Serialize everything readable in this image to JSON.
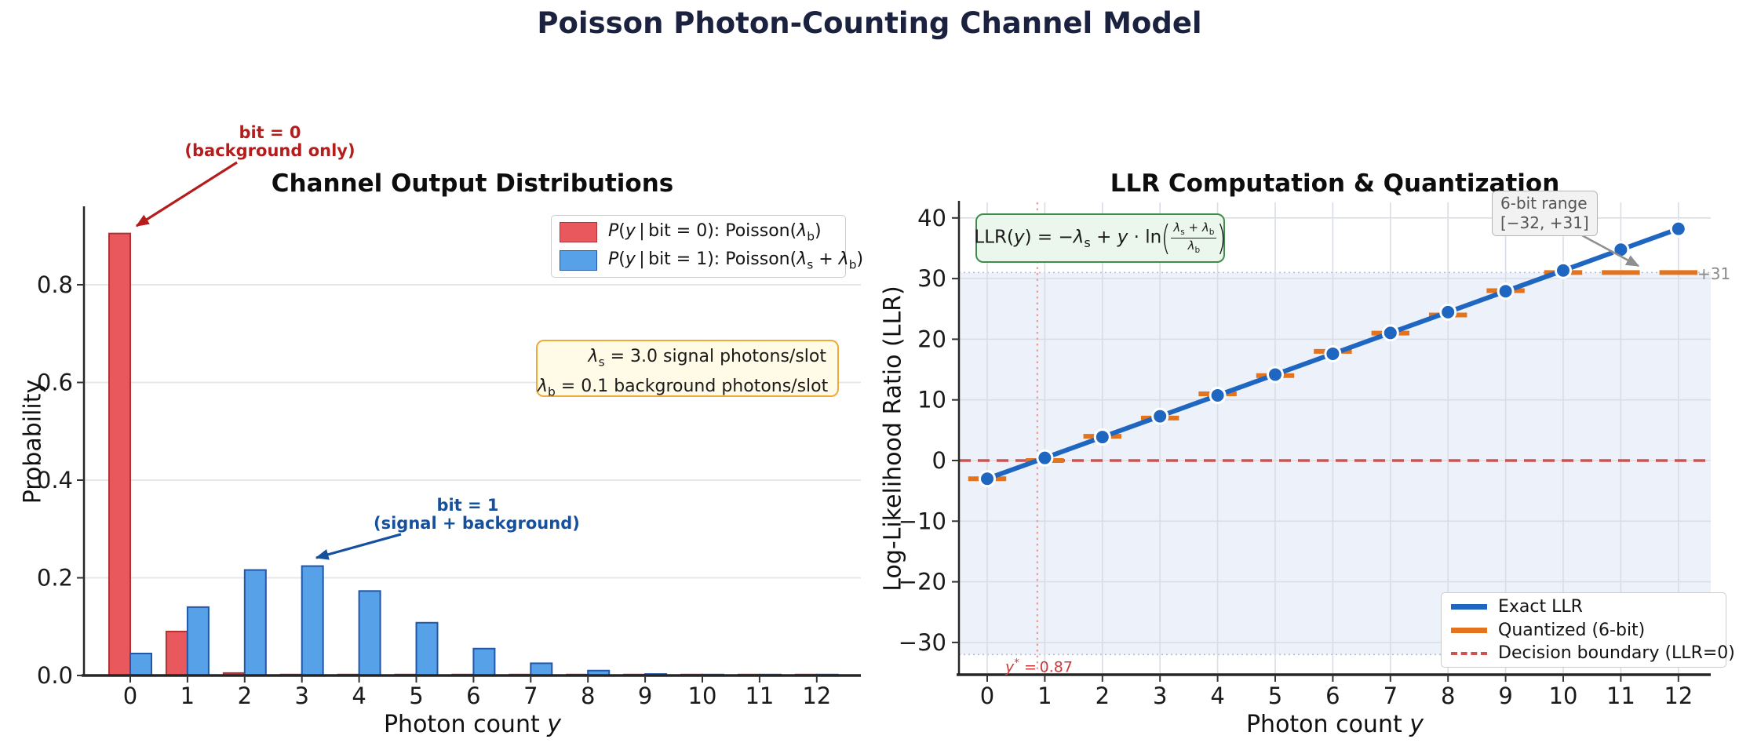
{
  "figure_title": "Poisson Photon-Counting Channel Model",
  "colors": {
    "title": "#1b2240",
    "bit0_fill": "#e8585c",
    "bit0_edge": "#ad3336",
    "bit1_fill": "#57a1e9",
    "bit1_edge": "#2257a8",
    "exact_llr": "#1f66c1",
    "quantized": "#e4731d",
    "decision": "#cd5250",
    "annotation_bit0": "#b51c1c",
    "annotation_bit1": "#15509e",
    "param_box_border": "#f2a93b",
    "param_box_bg": "#fffbe7",
    "formula_border": "#3e8e49",
    "formula_bg": "#ebf6ec",
    "range_box_bg": "#f2f2f2",
    "range_box_border": "#b5b5b5",
    "range_box_text": "#555555",
    "shade": "#edf1f9",
    "shade_edge_dotted": "#b4bccd",
    "threshold": "#cc3a3a",
    "threshold_line": "#ec9b9b",
    "grid_left": "#e7e7e7",
    "grid_right": "#d9dde6",
    "clip_label": "#8a8a8a",
    "spine": "#262626",
    "tick_text": "#1a1a1a",
    "arrow_gray": "#8f8f8f"
  },
  "left_chart": {
    "title": "Channel Output Distributions",
    "ylabel": "Probability",
    "xlabel_html": "Photon count <i>y</i>",
    "legend": [
      {
        "label_html": "<i>P</i>(<i>y</i> | bit = 0): Poisson(<i>λ</i><sub>b</sub>)"
      },
      {
        "label_html": "<i>P</i>(<i>y</i> | bit = 1): Poisson(<i>λ</i><sub>s</sub> + <i>λ</i><sub>b</sub>)"
      }
    ],
    "param_lines_html": [
      "<i>λ</i><sub>s</sub> = 3.0 signal photons/slot",
      "<i>λ</i><sub>b</sub> = 0.1 background photons/slot"
    ],
    "ann_bit0": {
      "line1": "bit = 0",
      "line2": "(background only)"
    },
    "ann_bit1": {
      "line1": "bit = 1",
      "line2": "(signal + background)"
    }
  },
  "right_chart": {
    "title": "LLR Computation & Quantization",
    "ylabel": "Log-Likelihood Ratio (LLR)",
    "xlabel_html": "Photon count <i>y</i>",
    "formula_html": "LLR(<i>y</i>) = −<i>λ</i><sub>s</sub> + <i>y</i> · ln<span class='bigp'>(</span><span class='frac'><span class='fnum'><i>λ</i><sub>s</sub> + <i>λ</i><sub>b</sub></span><span class='fden'><i>λ</i><sub>b</sub></span></span><span class='bigp'>)</span>",
    "range_box": {
      "line1": "6-bit range",
      "line2": "[−32, +31]"
    },
    "clip_label": "+31",
    "threshold_html": "<i>y</i><sup>*</sup> = 0.87",
    "legend": [
      "Exact LLR",
      "Quantized (6-bit)",
      "Decision boundary (LLR=0)"
    ]
  },
  "chart_data": [
    {
      "type": "bar",
      "title": "Channel Output Distributions",
      "xlabel": "Photon count y",
      "ylabel": "Probability",
      "categories": [
        0,
        1,
        2,
        3,
        4,
        5,
        6,
        7,
        8,
        9,
        10,
        11,
        12
      ],
      "series": [
        {
          "name": "P(y|bit=0): Poisson(lambda_b=0.1)",
          "values": [
            0.905,
            0.09,
            0.005,
            0.0002,
            0,
            0,
            0,
            0,
            0,
            0,
            0,
            0,
            0
          ]
        },
        {
          "name": "P(y|bit=1): Poisson(lambda_s+lambda_b=3.1)",
          "values": [
            0.045,
            0.14,
            0.216,
            0.224,
            0.173,
            0.108,
            0.055,
            0.025,
            0.01,
            0.003,
            0.001,
            0.0003,
            0.0001
          ]
        }
      ],
      "yticks": [
        0.0,
        0.2,
        0.4,
        0.6,
        0.8
      ],
      "ylim": [
        0,
        0.957
      ],
      "grid": "horizontal",
      "legend_position": "upper right",
      "params": {
        "lambda_s": 3.0,
        "lambda_b": 0.1
      }
    },
    {
      "type": "line",
      "title": "LLR Computation & Quantization",
      "xlabel": "Photon count y",
      "ylabel": "Log-Likelihood Ratio (LLR)",
      "x": [
        0,
        1,
        2,
        3,
        4,
        5,
        6,
        7,
        8,
        9,
        10,
        11,
        12
      ],
      "series": [
        {
          "name": "Exact LLR",
          "values": [
            -3.0,
            0.43,
            3.87,
            7.3,
            10.74,
            14.17,
            17.6,
            21.04,
            24.47,
            27.91,
            31.34,
            34.77,
            38.21
          ]
        },
        {
          "name": "Quantized (6-bit)",
          "values": [
            -3,
            0,
            4,
            7,
            11,
            14,
            18,
            21,
            24,
            28,
            31,
            31,
            31
          ]
        }
      ],
      "xticks": [
        0,
        1,
        2,
        3,
        4,
        5,
        6,
        7,
        8,
        9,
        10,
        11,
        12
      ],
      "yticks": [
        -30,
        -20,
        -10,
        0,
        10,
        20,
        30,
        40
      ],
      "ylim": [
        -35.5,
        42.5
      ],
      "decision_boundary": 0,
      "threshold_x": 0.87,
      "quant_range": [
        -32,
        31
      ],
      "legend_position": "lower right",
      "grid": "both"
    }
  ]
}
